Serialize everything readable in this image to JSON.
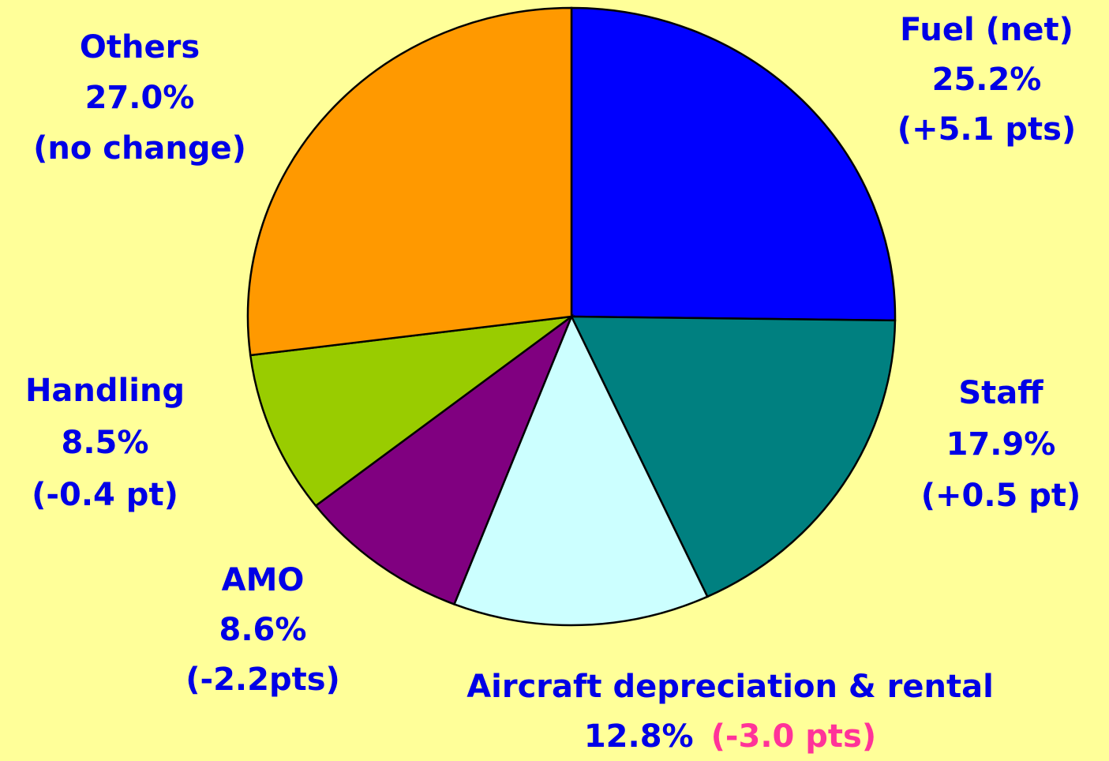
{
  "chart_data": {
    "type": "pie",
    "categories": [
      "Fuel (net)",
      "Staff",
      "Aircraft depreciation & rental",
      "AMO",
      "Handling",
      "Others"
    ],
    "values": [
      25.2,
      17.9,
      12.8,
      8.6,
      8.5,
      27.0
    ],
    "value_labels": [
      "25.2%",
      "17.9%",
      "12.8%",
      "8.6%",
      "8.5%",
      "27.0%"
    ],
    "colors": [
      "#0000ff",
      "#008080",
      "#ccffff",
      "#800080",
      "#99cc00",
      "#ff9900"
    ],
    "changes": [
      "(+5.1 pts)",
      "(+0.5 pt)",
      "(-3.0 pts)",
      "(-2.2pts)",
      "(-0.4 pt)",
      "(no change)"
    ],
    "change_colors": [
      "#0000e6",
      "#0000e6",
      "#ff3399",
      "#ff3399",
      "#ff3399",
      "#7f00e6"
    ]
  }
}
